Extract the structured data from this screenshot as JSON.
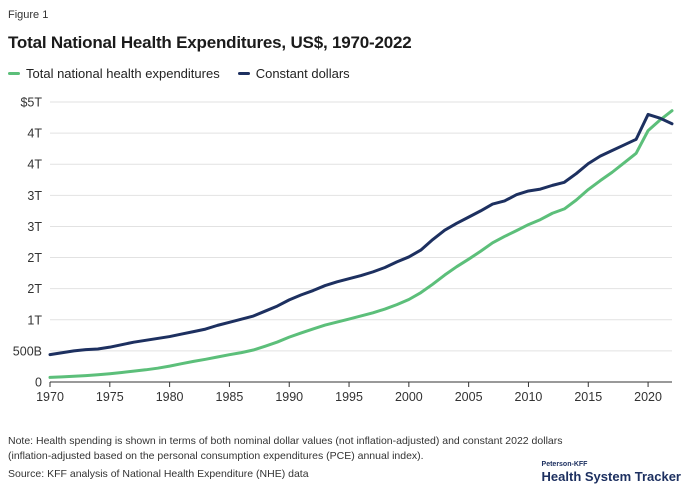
{
  "figure_label": "Figure 1",
  "title": "Total National Health Expenditures, US$, 1970-2022",
  "note": "Note: Health spending is shown in terms of both nominal dollar values (not inflation-adjusted) and constant 2022 dollars (inflation-adjusted based on the personal consumption expenditures (PCE) annual index).",
  "source": "Source: KFF analysis of National Health Expenditure (NHE) data",
  "brand": {
    "top": "Peterson-KFF",
    "main": "Health System Tracker"
  },
  "colors": {
    "nominal": "#5cbf7a",
    "constant": "#1d3060",
    "grid": "#e2e2e2",
    "axis": "#333333"
  },
  "chart_data": {
    "type": "line",
    "title": "Total National Health Expenditures, US$, 1970-2022",
    "xlabel": "",
    "ylabel": "",
    "xlim": [
      1970,
      2022
    ],
    "ylim": [
      0,
      4.5
    ],
    "x_ticks": [
      1970,
      1975,
      1980,
      1985,
      1990,
      1995,
      2000,
      2005,
      2010,
      2015,
      2020
    ],
    "y_ticks": [
      {
        "value": 0,
        "label": "0"
      },
      {
        "value": 0.5,
        "label": "500B"
      },
      {
        "value": 1.0,
        "label": "1T"
      },
      {
        "value": 1.5,
        "label": "2T"
      },
      {
        "value": 2.0,
        "label": "2T"
      },
      {
        "value": 2.5,
        "label": "3T"
      },
      {
        "value": 3.0,
        "label": "3T"
      },
      {
        "value": 3.5,
        "label": "4T"
      },
      {
        "value": 4.0,
        "label": "4T"
      },
      {
        "value": 4.5,
        "label": "$5T"
      }
    ],
    "grid": true,
    "legend_position": "top-left",
    "x": [
      1970,
      1971,
      1972,
      1973,
      1974,
      1975,
      1976,
      1977,
      1978,
      1979,
      1980,
      1981,
      1982,
      1983,
      1984,
      1985,
      1986,
      1987,
      1988,
      1989,
      1990,
      1991,
      1992,
      1993,
      1994,
      1995,
      1996,
      1997,
      1998,
      1999,
      2000,
      2001,
      2002,
      2003,
      2004,
      2005,
      2006,
      2007,
      2008,
      2009,
      2010,
      2011,
      2012,
      2013,
      2014,
      2015,
      2016,
      2017,
      2018,
      2019,
      2020,
      2021,
      2022
    ],
    "series": [
      {
        "name": "Total national health expenditures",
        "color": "#5cbf7a",
        "values": [
          0.074,
          0.083,
          0.093,
          0.103,
          0.117,
          0.133,
          0.153,
          0.175,
          0.196,
          0.222,
          0.255,
          0.294,
          0.331,
          0.365,
          0.402,
          0.439,
          0.472,
          0.514,
          0.576,
          0.642,
          0.721,
          0.789,
          0.853,
          0.915,
          0.964,
          1.012,
          1.061,
          1.112,
          1.172,
          1.244,
          1.326,
          1.436,
          1.572,
          1.719,
          1.853,
          1.974,
          2.101,
          2.237,
          2.339,
          2.433,
          2.53,
          2.61,
          2.712,
          2.782,
          2.925,
          3.093,
          3.236,
          3.371,
          3.522,
          3.675,
          4.04,
          4.21,
          4.36
        ]
      },
      {
        "name": "Constant dollars",
        "color": "#1d3060",
        "values": [
          0.44,
          0.47,
          0.5,
          0.52,
          0.53,
          0.56,
          0.6,
          0.64,
          0.67,
          0.7,
          0.73,
          0.77,
          0.81,
          0.85,
          0.91,
          0.96,
          1.01,
          1.06,
          1.14,
          1.22,
          1.32,
          1.4,
          1.47,
          1.55,
          1.61,
          1.66,
          1.71,
          1.77,
          1.84,
          1.93,
          2.01,
          2.12,
          2.29,
          2.44,
          2.55,
          2.65,
          2.75,
          2.86,
          2.91,
          3.01,
          3.07,
          3.1,
          3.16,
          3.21,
          3.35,
          3.51,
          3.63,
          3.72,
          3.81,
          3.9,
          4.3,
          4.24,
          4.15
        ]
      }
    ]
  }
}
